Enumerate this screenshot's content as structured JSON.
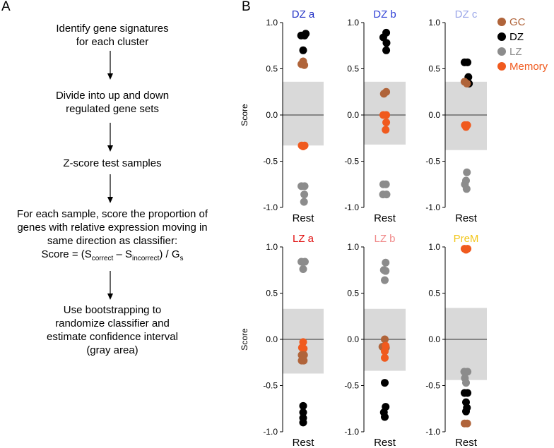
{
  "panel_a": {
    "label": "A",
    "steps": [
      {
        "lines": [
          "Identify gene signatures",
          "for each cluster"
        ]
      },
      {
        "lines": [
          "Divide into up and down",
          "regulated gene sets"
        ]
      },
      {
        "lines": [
          "Z-score test samples"
        ]
      },
      {
        "lines": [
          "For each sample, score the proportion of",
          "genes with relative expression moving in",
          "same direction as classifier:"
        ]
      },
      {
        "lines": [
          "Use bootstrapping to",
          "randomize classifier and",
          "estimate confidence interval",
          "(gray area)"
        ]
      }
    ],
    "formula": {
      "prefix": "Score = (S",
      "sub1": "correct",
      "mid": " – S",
      "sub2": "incorrect",
      "suffix": ") / G",
      "sub3": "s"
    }
  },
  "panel_b": {
    "label": "B",
    "legend": [
      {
        "name": "GC",
        "color": "#b0643a"
      },
      {
        "name": "DZ",
        "color": "#000000"
      },
      {
        "name": "LZ",
        "color": "#8c8c8c"
      },
      {
        "name": "Memory",
        "color": "#f05a1e"
      }
    ]
  },
  "chart_data": {
    "type": "scatter",
    "ylabel": "Score",
    "xlabel": "Rest",
    "ylim": [
      -1.0,
      1.0
    ],
    "yticks": [
      "1.0",
      "0.5",
      "0.0",
      "-0.5",
      "-1.0"
    ],
    "series_colors": {
      "GC": "#b0643a",
      "DZ": "#000000",
      "LZ": "#8c8c8c",
      "Memory": "#f05a1e"
    },
    "plots": [
      {
        "title": "DZ a",
        "title_color": "#1f2fc4",
        "ci": [
          -0.33,
          0.36
        ],
        "points": [
          [
            "DZ",
            -0.07,
            0.86
          ],
          [
            "DZ",
            0.05,
            0.86
          ],
          [
            "DZ",
            0.09,
            0.88
          ],
          [
            "DZ",
            0.0,
            0.7
          ],
          [
            "GC",
            -0.06,
            0.55
          ],
          [
            "GC",
            0.04,
            0.54
          ],
          [
            "GC",
            0.0,
            0.58
          ],
          [
            "Memory",
            -0.05,
            -0.33
          ],
          [
            "Memory",
            0.05,
            -0.33
          ],
          [
            "Memory",
            0.0,
            -0.34
          ],
          [
            "LZ",
            -0.06,
            -0.77
          ],
          [
            "LZ",
            0.05,
            -0.77
          ],
          [
            "LZ",
            0.04,
            -0.86
          ],
          [
            "LZ",
            0.03,
            -0.94
          ]
        ]
      },
      {
        "title": "DZ b",
        "title_color": "#2e3fd6",
        "ci": [
          -0.32,
          0.36
        ],
        "points": [
          [
            "DZ",
            -0.05,
            0.84
          ],
          [
            "DZ",
            0.05,
            0.89
          ],
          [
            "DZ",
            0.06,
            0.78
          ],
          [
            "DZ",
            0.05,
            0.7
          ],
          [
            "GC",
            -0.03,
            0.23
          ],
          [
            "GC",
            0.05,
            0.25
          ],
          [
            "Memory",
            -0.05,
            0.0
          ],
          [
            "Memory",
            0.05,
            0.0
          ],
          [
            "Memory",
            0.05,
            -0.08
          ],
          [
            "Memory",
            0.03,
            -0.16
          ],
          [
            "LZ",
            -0.05,
            -0.75
          ],
          [
            "LZ",
            0.04,
            -0.75
          ],
          [
            "LZ",
            -0.06,
            -0.86
          ],
          [
            "LZ",
            0.06,
            -0.86
          ]
        ]
      },
      {
        "title": "DZ c",
        "title_color": "#9aa6e8",
        "ci": [
          -0.38,
          0.36
        ],
        "points": [
          [
            "DZ",
            -0.05,
            0.57
          ],
          [
            "DZ",
            0.05,
            0.57
          ],
          [
            "DZ",
            0.08,
            0.41
          ],
          [
            "DZ",
            0.1,
            0.34
          ],
          [
            "GC",
            -0.05,
            0.36
          ],
          [
            "GC",
            0.03,
            0.34
          ],
          [
            "Memory",
            -0.04,
            -0.11
          ],
          [
            "Memory",
            0.04,
            -0.11
          ],
          [
            "Memory",
            0.0,
            -0.13
          ],
          [
            "LZ",
            0.03,
            -0.62
          ],
          [
            "LZ",
            0.0,
            -0.71
          ],
          [
            "LZ",
            -0.04,
            -0.75
          ],
          [
            "LZ",
            0.02,
            -0.8
          ]
        ]
      },
      {
        "title": "LZ a",
        "title_color": "#e01010",
        "ci": [
          -0.37,
          0.33
        ],
        "points": [
          [
            "LZ",
            -0.06,
            0.84
          ],
          [
            "LZ",
            0.06,
            0.84
          ],
          [
            "LZ",
            0.0,
            0.76
          ],
          [
            "Memory",
            0.0,
            -0.03
          ],
          [
            "Memory",
            -0.04,
            -0.09
          ],
          [
            "Memory",
            0.02,
            -0.1
          ],
          [
            "GC",
            -0.05,
            -0.17
          ],
          [
            "GC",
            0.03,
            -0.17
          ],
          [
            "GC",
            -0.05,
            -0.23
          ],
          [
            "GC",
            0.02,
            -0.23
          ],
          [
            "DZ",
            0.0,
            -0.72
          ],
          [
            "DZ",
            0.0,
            -0.79
          ],
          [
            "DZ",
            0.0,
            -0.85
          ],
          [
            "DZ",
            0.0,
            -0.9
          ]
        ]
      },
      {
        "title": "LZ b",
        "title_color": "#f08a8a",
        "ci": [
          -0.34,
          0.33
        ],
        "points": [
          [
            "LZ",
            -0.03,
            0.75
          ],
          [
            "LZ",
            0.03,
            0.83
          ],
          [
            "LZ",
            0.03,
            0.74
          ],
          [
            "LZ",
            0.0,
            0.64
          ],
          [
            "GC",
            0.0,
            0.0
          ],
          [
            "GC",
            -0.08,
            -0.08
          ],
          [
            "GC",
            0.04,
            -0.09
          ],
          [
            "Memory",
            0.03,
            -0.07
          ],
          [
            "Memory",
            0.0,
            -0.13
          ],
          [
            "Memory",
            0.0,
            -0.2
          ],
          [
            "DZ",
            0.0,
            -0.47
          ],
          [
            "DZ",
            0.03,
            -0.73
          ],
          [
            "DZ",
            -0.03,
            -0.79
          ],
          [
            "DZ",
            0.0,
            -0.84
          ]
        ]
      },
      {
        "title": "PreM",
        "title_color": "#f2c61a",
        "ci": [
          -0.44,
          0.34
        ],
        "points": [
          [
            "Memory",
            -0.05,
            0.98
          ],
          [
            "Memory",
            0.05,
            0.98
          ],
          [
            "Memory",
            0.0,
            0.97
          ],
          [
            "LZ",
            -0.06,
            -0.35
          ],
          [
            "LZ",
            0.05,
            -0.35
          ],
          [
            "LZ",
            -0.04,
            -0.42
          ],
          [
            "LZ",
            0.0,
            -0.47
          ],
          [
            "DZ",
            -0.05,
            -0.58
          ],
          [
            "DZ",
            0.05,
            -0.58
          ],
          [
            "DZ",
            0.0,
            -0.68
          ],
          [
            "DZ",
            0.03,
            -0.74
          ],
          [
            "DZ",
            0.0,
            -0.78
          ],
          [
            "GC",
            -0.05,
            -0.91
          ],
          [
            "GC",
            0.04,
            -0.91
          ]
        ]
      }
    ]
  }
}
